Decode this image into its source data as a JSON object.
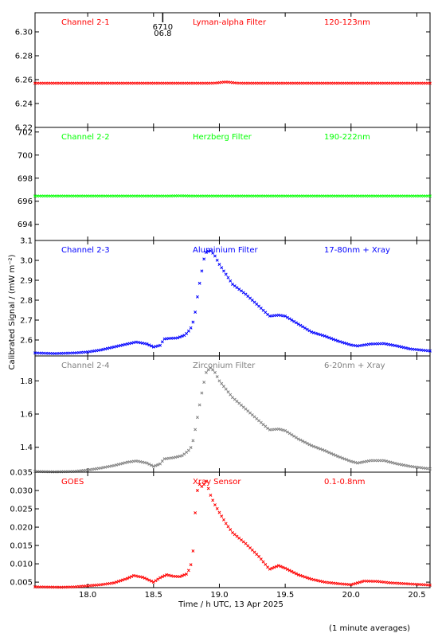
{
  "chart_data": {
    "type": "scatter",
    "xlabel": "Time / h UTC, 13 Apr 2025",
    "ylabel": "Calibrated Signal / (mW m⁻²)",
    "xlim": [
      17.6,
      20.6
    ],
    "xticks": [
      18.0,
      18.5,
      19.0,
      19.5,
      20.0,
      20.5
    ],
    "xtick_labels": [
      "18.0",
      "18.5",
      "19.0",
      "19.5",
      "20.0",
      "20.5"
    ],
    "footnote": "(1 minute averages)",
    "marker_annotation": {
      "x": 18.57,
      "labels": [
        "6710",
        "06.8"
      ]
    },
    "panels": [
      {
        "channel": "Channel 2-1",
        "filter": "Lyman-alpha Filter",
        "band": "120-123nm",
        "color": "#ff0000",
        "ylim": [
          6.22,
          6.316
        ],
        "yticks": [
          6.22,
          6.24,
          6.26,
          6.28,
          6.3
        ],
        "ytick_labels": [
          "6.22",
          "6.24",
          "6.26",
          "6.28",
          "6.30"
        ],
        "profile": "flat",
        "base": 6.257,
        "bump_at": 19.05,
        "bump": 0.001
      },
      {
        "channel": "Channel 2-2",
        "filter": "Herzberg Filter",
        "band": "190-222nm",
        "color": "#00ff00",
        "ylim": [
          692.6,
          702.4
        ],
        "yticks": [
          694,
          696,
          698,
          700,
          702
        ],
        "ytick_labels": [
          "694",
          "696",
          "698",
          "700",
          "702"
        ],
        "profile": "flat",
        "base": 696.45,
        "bump_at": 18.7,
        "bump": 0.02
      },
      {
        "channel": "Channel 2-3",
        "filter": "Aluminium Filter",
        "band": "17-80nm + Xray",
        "color": "#0000ff",
        "ylim": [
          2.52,
          3.1
        ],
        "yticks": [
          2.6,
          2.7,
          2.8,
          2.9,
          3.0,
          3.1
        ],
        "ytick_labels": [
          "2.6",
          "2.7",
          "2.8",
          "2.9",
          "3.0",
          "3.1"
        ],
        "profile": "flare",
        "keypoints": [
          [
            17.6,
            2.535
          ],
          [
            17.75,
            2.532
          ],
          [
            17.9,
            2.535
          ],
          [
            18.0,
            2.54
          ],
          [
            18.1,
            2.55
          ],
          [
            18.2,
            2.565
          ],
          [
            18.3,
            2.58
          ],
          [
            18.37,
            2.59
          ],
          [
            18.45,
            2.58
          ],
          [
            18.5,
            2.565
          ],
          [
            18.55,
            2.573
          ],
          [
            18.58,
            2.605
          ],
          [
            18.62,
            2.608
          ],
          [
            18.68,
            2.61
          ],
          [
            18.74,
            2.625
          ],
          [
            18.78,
            2.655
          ],
          [
            18.8,
            2.69
          ],
          [
            18.82,
            2.75
          ],
          [
            18.84,
            2.85
          ],
          [
            18.86,
            2.92
          ],
          [
            18.88,
            3.0
          ],
          [
            18.9,
            3.04
          ],
          [
            18.93,
            3.05
          ],
          [
            18.96,
            3.03
          ],
          [
            19.0,
            2.98
          ],
          [
            19.05,
            2.93
          ],
          [
            19.1,
            2.88
          ],
          [
            19.2,
            2.83
          ],
          [
            19.3,
            2.77
          ],
          [
            19.38,
            2.72
          ],
          [
            19.45,
            2.725
          ],
          [
            19.5,
            2.72
          ],
          [
            19.6,
            2.68
          ],
          [
            19.7,
            2.64
          ],
          [
            19.8,
            2.62
          ],
          [
            19.9,
            2.595
          ],
          [
            20.0,
            2.575
          ],
          [
            20.05,
            2.57
          ],
          [
            20.15,
            2.58
          ],
          [
            20.25,
            2.582
          ],
          [
            20.35,
            2.57
          ],
          [
            20.45,
            2.555
          ],
          [
            20.6,
            2.545
          ]
        ]
      },
      {
        "channel": "Channel 2-4",
        "filter": "Zirconium Filter",
        "band": "6-20nm + Xray",
        "color": "#808080",
        "ylim": [
          1.25,
          1.95
        ],
        "yticks": [
          1.4,
          1.6,
          1.8
        ],
        "ytick_labels": [
          "1.4",
          "1.6",
          "1.8"
        ],
        "profile": "flare",
        "keypoints": [
          [
            17.6,
            1.255
          ],
          [
            17.75,
            1.252
          ],
          [
            17.9,
            1.255
          ],
          [
            18.0,
            1.263
          ],
          [
            18.1,
            1.275
          ],
          [
            18.2,
            1.29
          ],
          [
            18.3,
            1.31
          ],
          [
            18.37,
            1.318
          ],
          [
            18.45,
            1.305
          ],
          [
            18.5,
            1.285
          ],
          [
            18.55,
            1.3
          ],
          [
            18.58,
            1.33
          ],
          [
            18.65,
            1.337
          ],
          [
            18.72,
            1.35
          ],
          [
            18.78,
            1.39
          ],
          [
            18.8,
            1.44
          ],
          [
            18.82,
            1.52
          ],
          [
            18.84,
            1.61
          ],
          [
            18.86,
            1.7
          ],
          [
            18.88,
            1.78
          ],
          [
            18.9,
            1.85
          ],
          [
            18.93,
            1.88
          ],
          [
            18.96,
            1.86
          ],
          [
            19.0,
            1.8
          ],
          [
            19.05,
            1.75
          ],
          [
            19.1,
            1.7
          ],
          [
            19.2,
            1.63
          ],
          [
            19.3,
            1.56
          ],
          [
            19.38,
            1.505
          ],
          [
            19.45,
            1.51
          ],
          [
            19.5,
            1.5
          ],
          [
            19.6,
            1.45
          ],
          [
            19.7,
            1.41
          ],
          [
            19.8,
            1.38
          ],
          [
            19.9,
            1.345
          ],
          [
            20.0,
            1.315
          ],
          [
            20.05,
            1.305
          ],
          [
            20.15,
            1.32
          ],
          [
            20.25,
            1.32
          ],
          [
            20.35,
            1.3
          ],
          [
            20.45,
            1.285
          ],
          [
            20.6,
            1.27
          ]
        ]
      },
      {
        "channel": "GOES",
        "filter": "Xray Sensor",
        "band": "0.1-0.8nm",
        "color": "#ff0000",
        "ylim": [
          0.0035,
          0.035
        ],
        "yticks": [
          0.005,
          0.01,
          0.015,
          0.02,
          0.025,
          0.03,
          0.035
        ],
        "ytick_labels": [
          "0.005",
          "0.010",
          "0.015",
          "0.020",
          "0.025",
          "0.030",
          "0.035"
        ],
        "profile": "flare",
        "keypoints": [
          [
            17.6,
            0.0037
          ],
          [
            17.8,
            0.0036
          ],
          [
            17.9,
            0.0037
          ],
          [
            18.0,
            0.004
          ],
          [
            18.1,
            0.0043
          ],
          [
            18.2,
            0.0048
          ],
          [
            18.3,
            0.006
          ],
          [
            18.35,
            0.0068
          ],
          [
            18.42,
            0.0063
          ],
          [
            18.5,
            0.005
          ],
          [
            18.55,
            0.0062
          ],
          [
            18.6,
            0.007
          ],
          [
            18.65,
            0.0066
          ],
          [
            18.7,
            0.0065
          ],
          [
            18.75,
            0.0072
          ],
          [
            18.78,
            0.009
          ],
          [
            18.8,
            0.0135
          ],
          [
            18.82,
            0.026
          ],
          [
            18.84,
            0.032
          ],
          [
            18.87,
            0.031
          ],
          [
            18.9,
            0.0325
          ],
          [
            18.93,
            0.029
          ],
          [
            18.96,
            0.0265
          ],
          [
            19.0,
            0.024
          ],
          [
            19.05,
            0.021
          ],
          [
            19.1,
            0.0185
          ],
          [
            19.2,
            0.0155
          ],
          [
            19.3,
            0.012
          ],
          [
            19.38,
            0.0085
          ],
          [
            19.45,
            0.0095
          ],
          [
            19.5,
            0.0088
          ],
          [
            19.6,
            0.007
          ],
          [
            19.7,
            0.0058
          ],
          [
            19.8,
            0.005
          ],
          [
            19.9,
            0.0046
          ],
          [
            20.0,
            0.0043
          ],
          [
            20.1,
            0.0053
          ],
          [
            20.2,
            0.0052
          ],
          [
            20.3,
            0.0048
          ],
          [
            20.4,
            0.0046
          ],
          [
            20.5,
            0.0044
          ],
          [
            20.6,
            0.0042
          ]
        ]
      }
    ]
  }
}
